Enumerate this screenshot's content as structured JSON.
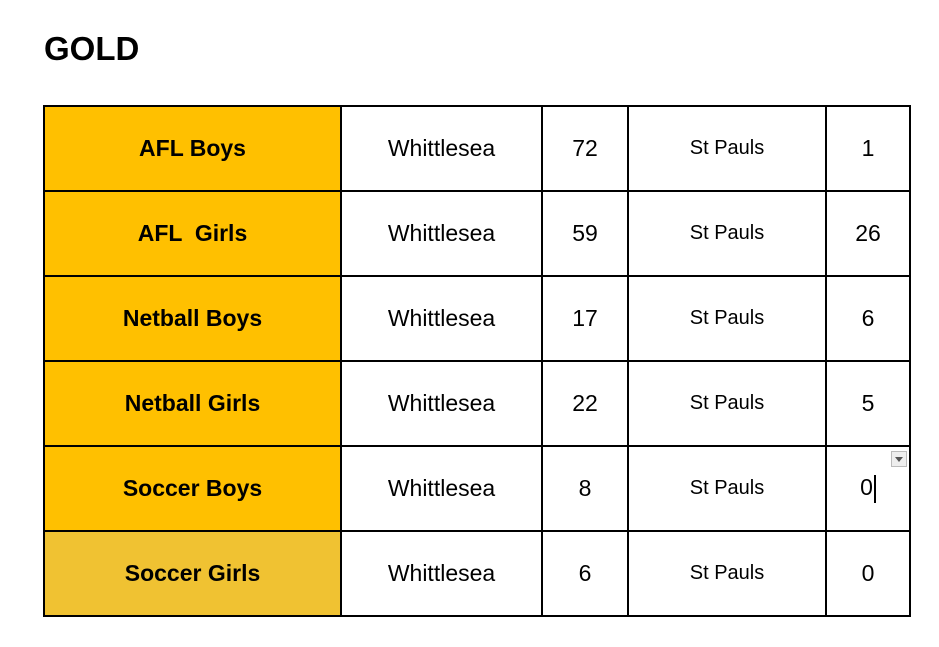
{
  "header": {
    "title": "GOLD"
  },
  "table": {
    "rows": [
      [
        "AFL Boys",
        "Whittlesea",
        72,
        "St Pauls",
        1
      ],
      [
        "AFL  Girls",
        "Whittlesea",
        59,
        "St Pauls",
        26
      ],
      [
        "Netball Boys",
        "Whittlesea",
        17,
        "St Pauls",
        6
      ],
      [
        "Netball Girls",
        "Whittlesea",
        22,
        "St Pauls",
        5
      ],
      [
        "Soccer Boys",
        "Whittlesea",
        8,
        "St Pauls",
        0
      ],
      [
        "Soccer Girls",
        "Whittlesea",
        6,
        "St Pauls",
        0
      ]
    ]
  }
}
